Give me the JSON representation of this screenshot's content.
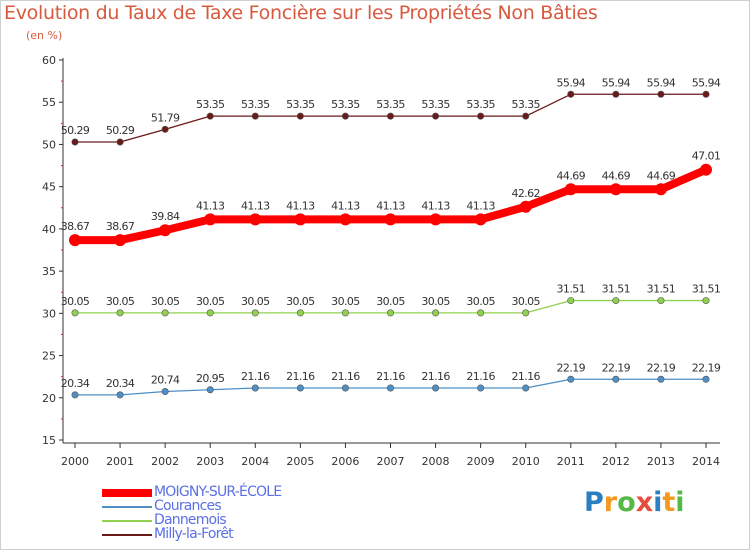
{
  "chart_data": {
    "type": "line",
    "title": "Evolution du Taux de Taxe Foncière sur les Propriétés Non Bâties",
    "ylabel": "(en %)",
    "xlabel": "",
    "categories": [
      "2000",
      "2001",
      "2002",
      "2003",
      "2004",
      "2005",
      "2006",
      "2007",
      "2008",
      "2009",
      "2010",
      "2011",
      "2012",
      "2013",
      "2014"
    ],
    "ylim": [
      15,
      60
    ],
    "yticks": [
      "15",
      "20",
      "25",
      "30",
      "35",
      "40",
      "45",
      "50",
      "55",
      "60"
    ],
    "grid": false,
    "legend_position": "bottom-left",
    "series": [
      {
        "name": "Milly-la-Forêt",
        "color": "#6b1a1a",
        "values": [
          50.29,
          50.29,
          51.79,
          53.35,
          53.35,
          53.35,
          53.35,
          53.35,
          53.35,
          53.35,
          53.35,
          55.94,
          55.94,
          55.94,
          55.94
        ],
        "labels": [
          "50.29",
          "50.29",
          "51.79",
          "53.35",
          "53.35",
          "53.35",
          "53.35",
          "53.35",
          "53.35",
          "53.35",
          "53.35",
          "55.94",
          "55.94",
          "55.94",
          "55.94"
        ]
      },
      {
        "name": "Dannemois",
        "color": "#8fd14f",
        "values": [
          30.05,
          30.05,
          30.05,
          30.05,
          30.05,
          30.05,
          30.05,
          30.05,
          30.05,
          30.05,
          30.05,
          31.51,
          31.51,
          31.51,
          31.51
        ],
        "labels": [
          "30.05",
          "30.05",
          "30.05",
          "30.05",
          "30.05",
          "30.05",
          "30.05",
          "30.05",
          "30.05",
          "30.05",
          "30.05",
          "31.51",
          "31.51",
          "31.51",
          "31.51"
        ]
      },
      {
        "name": "Courances",
        "color": "#4e8fc6",
        "values": [
          20.34,
          20.34,
          20.74,
          20.95,
          21.16,
          21.16,
          21.16,
          21.16,
          21.16,
          21.16,
          21.16,
          22.19,
          22.19,
          22.19,
          22.19
        ],
        "labels": [
          "20.34",
          "20.34",
          "20.74",
          "20.95",
          "21.16",
          "21.16",
          "21.16",
          "21.16",
          "21.16",
          "21.16",
          "21.16",
          "22.19",
          "22.19",
          "22.19",
          "22.19"
        ]
      },
      {
        "name": "MOIGNY-SUR-ÉCOLE",
        "color": "#ff0000",
        "values": [
          38.67,
          38.67,
          39.84,
          41.13,
          41.13,
          41.13,
          41.13,
          41.13,
          41.13,
          41.13,
          42.62,
          44.69,
          44.69,
          44.69,
          47.01
        ],
        "labels": [
          "38.67",
          "38.67",
          "39.84",
          "41.13",
          "41.13",
          "41.13",
          "41.13",
          "41.13",
          "41.13",
          "41.13",
          "42.62",
          "44.69",
          "44.69",
          "44.69",
          "47.01"
        ]
      }
    ],
    "legend": [
      "MOIGNY-SUR-ÉCOLE",
      "Courances",
      "Dannemois",
      "Milly-la-Forêt"
    ]
  },
  "logo": {
    "letters": [
      "P",
      "r",
      "o",
      "x",
      "i",
      "t",
      "i"
    ],
    "colors": [
      "#2a7fc2",
      "#f39a1f",
      "#58b847",
      "#e74c3c",
      "#2a7fc2",
      "#f39a1f",
      "#58b847"
    ]
  }
}
